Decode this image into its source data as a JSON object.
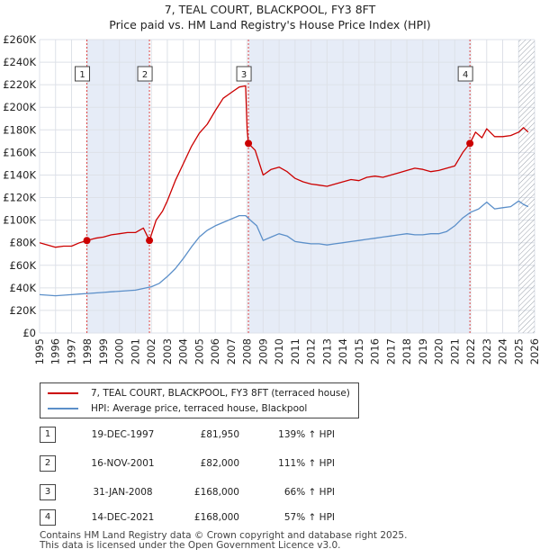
{
  "title": "7, TEAL COURT, BLACKPOOL, FY3 8FT",
  "subtitle": "Price paid vs. HM Land Registry's House Price Index (HPI)",
  "colors": {
    "property": "#cc0000",
    "hpi": "#5b8fc9",
    "shade": "#e6ecf7",
    "grid": "#dde1e8"
  },
  "legend": {
    "property_label": "7, TEAL COURT, BLACKPOOL, FY3 8FT (terraced house)",
    "hpi_label": "HPI: Average price, terraced house, Blackpool"
  },
  "sales": [
    {
      "num": "1",
      "date": "19-DEC-1997",
      "price": "£81,950",
      "hpi": "139% ↑ HPI"
    },
    {
      "num": "2",
      "date": "16-NOV-2001",
      "price": "£82,000",
      "hpi": "111% ↑ HPI"
    },
    {
      "num": "3",
      "date": "31-JAN-2008",
      "price": "£168,000",
      "hpi": "66% ↑ HPI"
    },
    {
      "num": "4",
      "date": "14-DEC-2021",
      "price": "£168,000",
      "hpi": "57% ↑ HPI"
    }
  ],
  "footer": {
    "line1": "Contains HM Land Registry data © Crown copyright and database right 2025.",
    "line2": "This data is licensed under the Open Government Licence v3.0."
  },
  "chart_data": {
    "type": "line",
    "title": "7, TEAL COURT, BLACKPOOL, FY3 8FT",
    "subtitle": "Price paid vs. HM Land Registry's House Price Index (HPI)",
    "xlabel": "",
    "ylabel": "",
    "xlim": [
      1995,
      2026
    ],
    "ylim": [
      0,
      260000
    ],
    "x_ticks": [
      1995,
      1996,
      1997,
      1998,
      1999,
      2000,
      2001,
      2002,
      2003,
      2004,
      2005,
      2006,
      2007,
      2008,
      2009,
      2010,
      2011,
      2012,
      2013,
      2014,
      2015,
      2016,
      2017,
      2018,
      2019,
      2020,
      2021,
      2022,
      2023,
      2024,
      2025,
      2026
    ],
    "y_ticks": [
      0,
      20000,
      40000,
      60000,
      80000,
      100000,
      120000,
      140000,
      160000,
      180000,
      200000,
      220000,
      240000,
      260000
    ],
    "y_tick_labels": [
      "£0",
      "£20K",
      "£40K",
      "£60K",
      "£80K",
      "£100K",
      "£120K",
      "£140K",
      "£160K",
      "£180K",
      "£200K",
      "£220K",
      "£240K",
      "£260K"
    ],
    "grid": true,
    "shaded_ranges": [
      [
        1997.96,
        2001.88
      ],
      [
        2008.08,
        2021.95
      ]
    ],
    "future_hatch_start": 2025.0,
    "sale_markers": [
      {
        "label": "1",
        "x": 1997.96,
        "y": 81950
      },
      {
        "label": "2",
        "x": 2001.88,
        "y": 82000
      },
      {
        "label": "3",
        "x": 2008.08,
        "y": 168000
      },
      {
        "label": "4",
        "x": 2021.95,
        "y": 168000
      }
    ],
    "series": [
      {
        "name": "7, TEAL COURT, BLACKPOOL, FY3 8FT (terraced house)",
        "color": "#cc0000",
        "x": [
          1995.0,
          1995.5,
          1996.0,
          1996.5,
          1997.0,
          1997.5,
          1997.96,
          1998.5,
          1999.0,
          1999.5,
          2000.0,
          2000.5,
          2001.0,
          2001.5,
          2001.88,
          2002.3,
          2002.7,
          2003.0,
          2003.5,
          2004.0,
          2004.5,
          2005.0,
          2005.5,
          2006.0,
          2006.5,
          2007.0,
          2007.5,
          2007.9,
          2008.0,
          2008.08,
          2008.5,
          2009.0,
          2009.5,
          2010.0,
          2010.5,
          2011.0,
          2011.5,
          2012.0,
          2012.5,
          2013.0,
          2013.5,
          2014.0,
          2014.5,
          2015.0,
          2015.5,
          2016.0,
          2016.5,
          2017.0,
          2017.5,
          2018.0,
          2018.5,
          2019.0,
          2019.5,
          2020.0,
          2020.5,
          2021.0,
          2021.5,
          2021.95,
          2022.3,
          2022.7,
          2023.0,
          2023.5,
          2024.0,
          2024.5,
          2025.0,
          2025.3,
          2025.6
        ],
        "y": [
          80000,
          78000,
          76000,
          77000,
          77000,
          80000,
          81950,
          84000,
          85000,
          87000,
          88000,
          89000,
          89000,
          93000,
          82000,
          100000,
          108000,
          117000,
          135000,
          150000,
          165000,
          177000,
          185000,
          197000,
          208000,
          213000,
          218000,
          219000,
          180000,
          168000,
          162000,
          140000,
          145000,
          147000,
          143000,
          137000,
          134000,
          132000,
          131000,
          130000,
          132000,
          134000,
          136000,
          135000,
          138000,
          139000,
          138000,
          140000,
          142000,
          144000,
          146000,
          145000,
          143000,
          144000,
          146000,
          148000,
          160000,
          168000,
          178000,
          173000,
          181000,
          174000,
          174000,
          175000,
          178000,
          182000,
          178000
        ]
      },
      {
        "name": "HPI: Average price, terraced house, Blackpool",
        "color": "#5b8fc9",
        "x": [
          1995.0,
          1995.5,
          1996.0,
          1996.5,
          1997.0,
          1997.5,
          1998.0,
          1998.5,
          1999.0,
          1999.5,
          2000.0,
          2000.5,
          2001.0,
          2001.5,
          2002.0,
          2002.5,
          2003.0,
          2003.5,
          2004.0,
          2004.5,
          2005.0,
          2005.5,
          2006.0,
          2006.5,
          2007.0,
          2007.5,
          2007.9,
          2008.2,
          2008.6,
          2009.0,
          2009.5,
          2010.0,
          2010.5,
          2011.0,
          2011.5,
          2012.0,
          2012.5,
          2013.0,
          2013.5,
          2014.0,
          2014.5,
          2015.0,
          2015.5,
          2016.0,
          2016.5,
          2017.0,
          2017.5,
          2018.0,
          2018.5,
          2019.0,
          2019.5,
          2020.0,
          2020.5,
          2021.0,
          2021.5,
          2022.0,
          2022.5,
          2023.0,
          2023.5,
          2024.0,
          2024.5,
          2025.0,
          2025.3,
          2025.6
        ],
        "y": [
          34000,
          33500,
          33000,
          33500,
          34000,
          34500,
          35000,
          35500,
          36000,
          36500,
          37000,
          37500,
          38000,
          39500,
          41000,
          44000,
          50000,
          57000,
          66000,
          76000,
          85000,
          91000,
          95000,
          98000,
          101000,
          104000,
          104000,
          100000,
          95000,
          82000,
          85000,
          88000,
          86000,
          81000,
          80000,
          79000,
          79000,
          78000,
          79000,
          80000,
          81000,
          82000,
          83000,
          84000,
          85000,
          86000,
          87000,
          88000,
          87000,
          87000,
          88000,
          88000,
          90000,
          95000,
          102000,
          107000,
          110000,
          116000,
          110000,
          111000,
          112000,
          117000,
          114000,
          112000
        ]
      }
    ]
  }
}
